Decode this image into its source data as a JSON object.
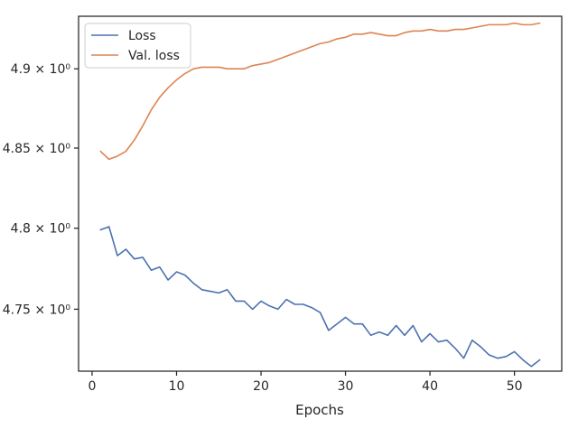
{
  "chart_data": {
    "type": "line",
    "title": "",
    "xlabel": "Epochs",
    "ylabel": "",
    "xlim": [
      -1.6,
      55.6
    ],
    "ylim": [
      4.7121,
      4.9334
    ],
    "yscale": "log",
    "grid": false,
    "legend_position": "top-left",
    "x_ticks": [
      0,
      10,
      20,
      30,
      40,
      50
    ],
    "x_tick_labels": [
      "0",
      "10",
      "20",
      "30",
      "40",
      "50"
    ],
    "y_ticks": [
      4.75,
      4.8,
      4.85,
      4.9
    ],
    "y_tick_labels": [
      "4.75 × 10⁰",
      "4.8 × 10⁰",
      "4.85 × 10⁰",
      "4.9 × 10⁰"
    ],
    "x": [
      1,
      2,
      3,
      4,
      5,
      6,
      7,
      8,
      9,
      10,
      11,
      12,
      13,
      14,
      15,
      16,
      17,
      18,
      19,
      20,
      21,
      22,
      23,
      24,
      25,
      26,
      27,
      28,
      29,
      30,
      31,
      32,
      33,
      34,
      35,
      36,
      37,
      38,
      39,
      40,
      41,
      42,
      43,
      44,
      45,
      46,
      47,
      48,
      49,
      50,
      51,
      52,
      53
    ],
    "series": [
      {
        "name": "Loss",
        "color": "#4c72b0",
        "values": [
          4.799,
          4.801,
          4.783,
          4.787,
          4.781,
          4.782,
          4.774,
          4.776,
          4.768,
          4.773,
          4.771,
          4.766,
          4.762,
          4.761,
          4.76,
          4.762,
          4.755,
          4.755,
          4.75,
          4.755,
          4.752,
          4.75,
          4.756,
          4.753,
          4.753,
          4.751,
          4.748,
          4.737,
          4.741,
          4.745,
          4.741,
          4.741,
          4.734,
          4.736,
          4.734,
          4.74,
          4.734,
          4.74,
          4.73,
          4.735,
          4.73,
          4.731,
          4.726,
          4.72,
          4.731,
          4.727,
          4.722,
          4.72,
          4.721,
          4.724,
          4.719,
          4.715,
          4.719
        ]
      },
      {
        "name": "Val. loss",
        "color": "#dd8452",
        "values": [
          4.848,
          4.843,
          4.845,
          4.848,
          4.855,
          4.864,
          4.874,
          4.882,
          4.888,
          4.893,
          4.897,
          4.9,
          4.901,
          4.901,
          4.901,
          4.9,
          4.9,
          4.9,
          4.902,
          4.903,
          4.904,
          4.906,
          4.908,
          4.91,
          4.912,
          4.914,
          4.916,
          4.917,
          4.919,
          4.92,
          4.922,
          4.922,
          4.923,
          4.922,
          4.921,
          4.921,
          4.923,
          4.924,
          4.924,
          4.925,
          4.924,
          4.924,
          4.925,
          4.925,
          4.926,
          4.927,
          4.928,
          4.928,
          4.928,
          4.929,
          4.928,
          4.928,
          4.929
        ]
      }
    ]
  }
}
